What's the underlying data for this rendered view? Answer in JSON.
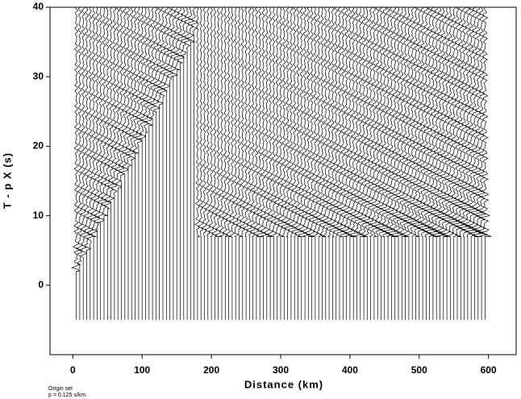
{
  "chart_data": {
    "type": "record-section",
    "xlabel": "Distance (km)",
    "ylabel": "T - p X (s)",
    "annotations": [
      "Origin set",
      "p = 0.125 s/km"
    ],
    "xlim": [
      -33,
      640
    ],
    "ylim": [
      -10,
      40
    ],
    "xticks": [
      0,
      100,
      200,
      300,
      400,
      500,
      600
    ],
    "yticks": [
      0,
      10,
      20,
      30,
      40
    ],
    "trace_window": [
      -5,
      40
    ],
    "color": "#000000",
    "x": [
      5,
      10,
      15,
      20,
      25,
      30,
      35,
      40,
      45,
      50,
      55,
      60,
      65,
      70,
      75,
      80,
      85,
      90,
      95,
      100,
      105,
      110,
      115,
      120,
      125,
      130,
      135,
      140,
      145,
      150,
      155,
      160,
      165,
      170,
      175,
      180,
      185,
      190,
      195,
      200,
      205,
      210,
      215,
      220,
      225,
      230,
      235,
      240,
      245,
      250,
      255,
      260,
      265,
      270,
      275,
      280,
      285,
      290,
      295,
      300,
      305,
      310,
      315,
      320,
      325,
      330,
      335,
      340,
      345,
      350,
      355,
      360,
      365,
      370,
      375,
      380,
      385,
      390,
      395,
      400,
      405,
      410,
      415,
      420,
      425,
      430,
      435,
      440,
      445,
      450,
      455,
      460,
      465,
      470,
      475,
      480,
      485,
      490,
      495,
      500,
      505,
      510,
      515,
      520,
      525,
      530,
      535,
      540,
      545,
      550,
      555,
      560,
      565,
      570,
      575,
      580,
      585,
      590,
      595
    ]
  }
}
